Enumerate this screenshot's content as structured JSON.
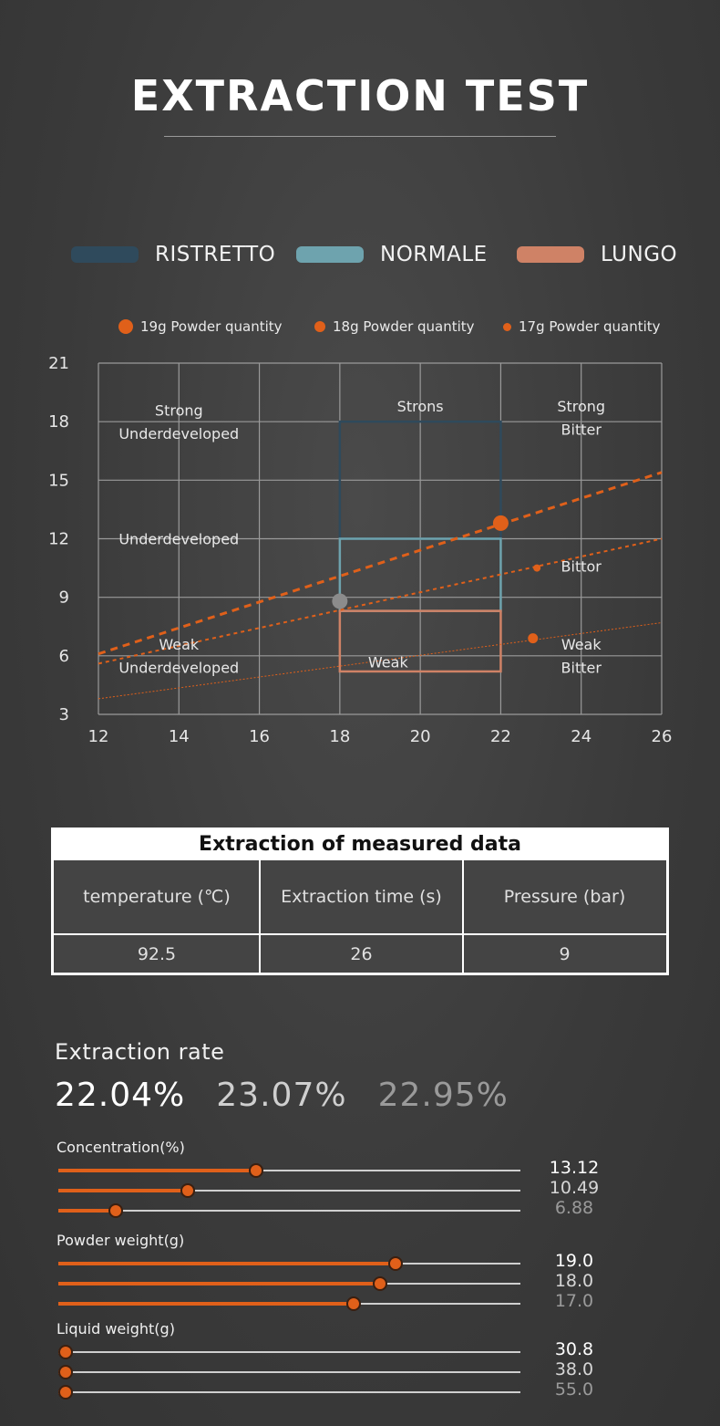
{
  "header": {
    "title": "EXTRACTION TEST"
  },
  "legend": [
    {
      "label": "RISTRETTO",
      "color": "#2f4a5c"
    },
    {
      "label": "NORMALE",
      "color": "#6ea3ae"
    },
    {
      "label": "LUNGO",
      "color": "#cf8266"
    }
  ],
  "powder_legend": [
    {
      "label": "19g Powder quantity"
    },
    {
      "label": "18g Powder quantity"
    },
    {
      "label": "17g Powder quantity"
    }
  ],
  "chart_data": {
    "type": "scatter",
    "xlim": [
      12,
      26
    ],
    "ylim": [
      3,
      21
    ],
    "x_ticks": [
      12,
      14,
      16,
      18,
      20,
      22,
      24,
      26
    ],
    "y_ticks": [
      3,
      6,
      9,
      12,
      15,
      18,
      21
    ],
    "grid": true,
    "regions": [
      {
        "name": "RISTRETTO",
        "x": [
          18,
          22
        ],
        "y": [
          12,
          18
        ],
        "color": "#2f4a5c"
      },
      {
        "name": "NORMALE",
        "x": [
          18,
          22
        ],
        "y": [
          8.3,
          12
        ],
        "color": "#6ea3ae"
      },
      {
        "name": "LUNGO",
        "x": [
          18,
          22
        ],
        "y": [
          5.2,
          8.3
        ],
        "color": "#cf8266"
      }
    ],
    "lines": [
      {
        "x": [
          12,
          26
        ],
        "y": [
          6.1,
          15.4
        ],
        "color": "#e0601a"
      },
      {
        "x": [
          12,
          26
        ],
        "y": [
          5.6,
          12.0
        ],
        "color": "#e0601a"
      },
      {
        "x": [
          12,
          26
        ],
        "y": [
          3.8,
          7.7
        ],
        "color": "#e0601a"
      }
    ],
    "points": [
      {
        "x": 22.0,
        "y": 12.8,
        "size": "large",
        "color": "#e0601a"
      },
      {
        "x": 18.0,
        "y": 8.8,
        "size": "large",
        "color": "#8c8c8c"
      },
      {
        "x": 22.9,
        "y": 10.5,
        "size": "small",
        "color": "#e0601a"
      },
      {
        "x": 22.8,
        "y": 6.9,
        "size": "medium",
        "color": "#e0601a"
      }
    ],
    "annotations": [
      {
        "text": "Strong",
        "x": 14,
        "y": 18.6
      },
      {
        "text": "Underdeveloped",
        "x": 14,
        "y": 17.4
      },
      {
        "text": "Strons",
        "x": 20,
        "y": 18.8
      },
      {
        "text": "Strong",
        "x": 24,
        "y": 18.8
      },
      {
        "text": "Bitter",
        "x": 24,
        "y": 17.6
      },
      {
        "text": "Underdeveloped",
        "x": 14,
        "y": 12.0
      },
      {
        "text": "Bittor",
        "x": 24,
        "y": 10.6
      },
      {
        "text": "Weak",
        "x": 14,
        "y": 6.6
      },
      {
        "text": "Underdeveloped",
        "x": 14,
        "y": 5.4
      },
      {
        "text": "Weak",
        "x": 19.2,
        "y": 5.7
      },
      {
        "text": "Weak",
        "x": 24,
        "y": 6.6
      },
      {
        "text": "Bitter",
        "x": 24,
        "y": 5.4
      }
    ]
  },
  "table": {
    "title": "Extraction of measured data",
    "headers": [
      "temperature (℃)",
      "Extraction time (s)",
      "Pressure (bar)"
    ],
    "values": [
      "92.5",
      "26",
      "9"
    ]
  },
  "rate": {
    "title": "Extraction rate",
    "values": [
      {
        "text": "22.04%",
        "color": "#ffffff"
      },
      {
        "text": "23.07%",
        "color": "#cfcfcf"
      },
      {
        "text": "22.95%",
        "color": "#9a9a9a"
      }
    ]
  },
  "sliders": [
    {
      "title": "Concentration(%)",
      "rows": [
        {
          "value": "13.12",
          "fraction": 0.428,
          "color": "#ffffff"
        },
        {
          "value": "10.49",
          "fraction": 0.28,
          "color": "#d6d6d6"
        },
        {
          "value": "6.88",
          "fraction": 0.125,
          "color": "#9a9a9a"
        }
      ]
    },
    {
      "title": "Powder weight(g)",
      "rows": [
        {
          "value": "19.0",
          "fraction": 0.73,
          "color": "#ffffff"
        },
        {
          "value": "18.0",
          "fraction": 0.696,
          "color": "#d6d6d6"
        },
        {
          "value": "17.0",
          "fraction": 0.639,
          "color": "#9a9a9a"
        }
      ]
    },
    {
      "title": "Liquid weight(g)",
      "rows": [
        {
          "value": "30.8",
          "fraction": 0.016,
          "color": "#ffffff"
        },
        {
          "value": "38.0",
          "fraction": 0.016,
          "color": "#d6d6d6"
        },
        {
          "value": "55.0",
          "fraction": 0.016,
          "color": "#9a9a9a"
        }
      ]
    }
  ]
}
